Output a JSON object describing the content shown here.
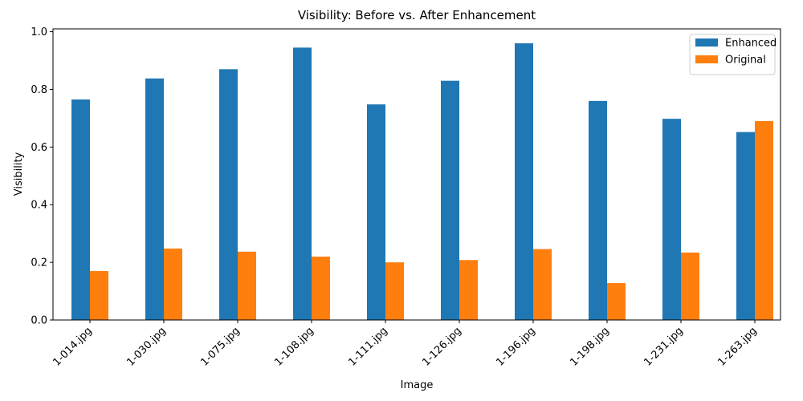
{
  "chart_data": {
    "type": "bar",
    "title": "Visibility: Before vs. After Enhancement",
    "xlabel": "Image",
    "ylabel": "Visibility",
    "ylim": [
      0,
      1.01
    ],
    "yticks": [
      0.0,
      0.2,
      0.4,
      0.6,
      0.8,
      1.0
    ],
    "ytick_labels": [
      "0.0",
      "0.2",
      "0.4",
      "0.6",
      "0.8",
      "1.0"
    ],
    "categories": [
      "1-014.jpg",
      "1-030.jpg",
      "1-075.jpg",
      "1-108.jpg",
      "1-111.jpg",
      "1-126.jpg",
      "1-196.jpg",
      "1-198.jpg",
      "1-231.jpg",
      "1-263.jpg"
    ],
    "series": [
      {
        "name": "Enhanced",
        "color": "#1f77b4",
        "values": [
          0.765,
          0.838,
          0.87,
          0.945,
          0.748,
          0.83,
          0.96,
          0.76,
          0.698,
          0.652
        ]
      },
      {
        "name": "Original",
        "color": "#ff7f0e",
        "values": [
          0.17,
          0.248,
          0.237,
          0.22,
          0.2,
          0.208,
          0.246,
          0.128,
          0.234,
          0.69
        ]
      }
    ],
    "grid": false,
    "legend_position": "top-right"
  }
}
